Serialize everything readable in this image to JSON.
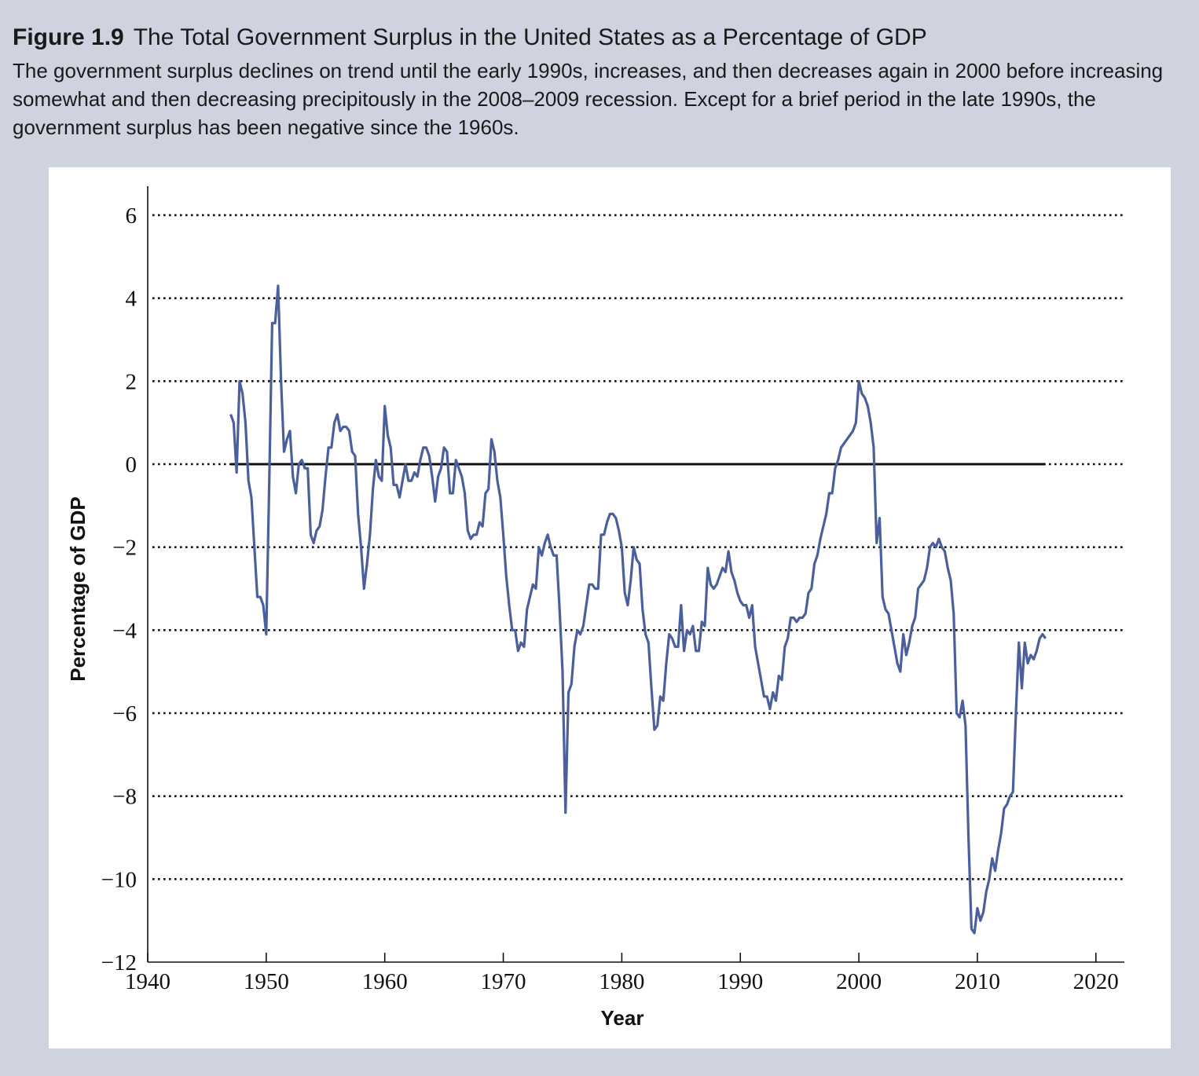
{
  "chart_data": {
    "type": "line",
    "figure_label": "Figure 1.9",
    "title": "The Total Government Surplus in the United States as a Percentage of GDP",
    "subtitle": "The government surplus declines on trend until the early 1990s, increases, and then decreases again in 2000 before increasing somewhat and then decreasing precipitously in the 2008–2009 recession. Except for a brief period in the late 1990s, the government surplus has been negative since the 1960s.",
    "x_label": "Year",
    "y_label": "Percentage of GDP",
    "color": "#4a5f9c",
    "grid": true,
    "xlim": [
      1940,
      2022.4
    ],
    "xticks": [
      1940,
      1950,
      1960,
      1970,
      1980,
      1990,
      2000,
      2010,
      2020
    ],
    "ylim": [
      -12,
      6.7
    ],
    "yticks": [
      {
        "value": -12,
        "label": "−12"
      },
      {
        "value": -10,
        "label": "−10"
      },
      {
        "value": -8,
        "label": "−8"
      },
      {
        "value": -6,
        "label": "−6"
      },
      {
        "value": -4,
        "label": "−4"
      },
      {
        "value": -2,
        "label": "−2"
      },
      0,
      2,
      4,
      6
    ],
    "x": [
      1947,
      1947.25,
      1947.5,
      1947.75,
      1948,
      1948.25,
      1948.5,
      1948.75,
      1949,
      1949.25,
      1949.5,
      1949.75,
      1950,
      1950.25,
      1950.5,
      1950.75,
      1951,
      1951.25,
      1951.5,
      1951.75,
      1952,
      1952.25,
      1952.5,
      1952.75,
      1953,
      1953.25,
      1953.5,
      1953.75,
      1954,
      1954.25,
      1954.5,
      1954.75,
      1955,
      1955.25,
      1955.5,
      1955.75,
      1956,
      1956.25,
      1956.5,
      1956.75,
      1957,
      1957.25,
      1957.5,
      1957.75,
      1958,
      1958.25,
      1958.5,
      1958.75,
      1959,
      1959.25,
      1959.5,
      1959.75,
      1960,
      1960.25,
      1960.5,
      1960.75,
      1961,
      1961.25,
      1961.5,
      1961.75,
      1962,
      1962.25,
      1962.5,
      1962.75,
      1963,
      1963.25,
      1963.5,
      1963.75,
      1964,
      1964.25,
      1964.5,
      1964.75,
      1965,
      1965.25,
      1965.5,
      1965.75,
      1966,
      1966.25,
      1966.5,
      1966.75,
      1967,
      1967.25,
      1967.5,
      1967.75,
      1968,
      1968.25,
      1968.5,
      1968.75,
      1969,
      1969.25,
      1969.5,
      1969.75,
      1970,
      1970.25,
      1970.5,
      1970.75,
      1971,
      1971.25,
      1971.5,
      1971.75,
      1972,
      1972.25,
      1972.5,
      1972.75,
      1973,
      1973.25,
      1973.5,
      1973.75,
      1974,
      1974.25,
      1974.5,
      1974.75,
      1975,
      1975.25,
      1975.5,
      1975.75,
      1976,
      1976.25,
      1976.5,
      1976.75,
      1977,
      1977.25,
      1977.5,
      1977.75,
      1978,
      1978.25,
      1978.5,
      1978.75,
      1979,
      1979.25,
      1979.5,
      1979.75,
      1980,
      1980.25,
      1980.5,
      1980.75,
      1981,
      1981.25,
      1981.5,
      1981.75,
      1982,
      1982.25,
      1982.5,
      1982.75,
      1983,
      1983.25,
      1983.5,
      1983.75,
      1984,
      1984.25,
      1984.5,
      1984.75,
      1985,
      1985.25,
      1985.5,
      1985.75,
      1986,
      1986.25,
      1986.5,
      1986.75,
      1987,
      1987.25,
      1987.5,
      1987.75,
      1988,
      1988.25,
      1988.5,
      1988.75,
      1989,
      1989.25,
      1989.5,
      1989.75,
      1990,
      1990.25,
      1990.5,
      1990.75,
      1991,
      1991.25,
      1991.5,
      1991.75,
      1992,
      1992.25,
      1992.5,
      1992.75,
      1993,
      1993.25,
      1993.5,
      1993.75,
      1994,
      1994.25,
      1994.5,
      1994.75,
      1995,
      1995.25,
      1995.5,
      1995.75,
      1996,
      1996.25,
      1996.5,
      1996.75,
      1997,
      1997.25,
      1997.5,
      1997.75,
      1998,
      1998.25,
      1998.5,
      1998.75,
      1999,
      1999.25,
      1999.5,
      1999.75,
      2000,
      2000.25,
      2000.5,
      2000.75,
      2001,
      2001.25,
      2001.5,
      2001.75,
      2002,
      2002.25,
      2002.5,
      2002.75,
      2003,
      2003.25,
      2003.5,
      2003.75,
      2004,
      2004.25,
      2004.5,
      2004.75,
      2005,
      2005.25,
      2005.5,
      2005.75,
      2006,
      2006.25,
      2006.5,
      2006.75,
      2007,
      2007.25,
      2007.5,
      2007.75,
      2008,
      2008.25,
      2008.5,
      2008.75,
      2009,
      2009.25,
      2009.5,
      2009.75,
      2010,
      2010.25,
      2010.5,
      2010.75,
      2011,
      2011.25,
      2011.5,
      2011.75,
      2012,
      2012.25,
      2012.5,
      2012.75,
      2013,
      2013.25,
      2013.5,
      2013.75,
      2014,
      2014.25,
      2014.5,
      2014.75,
      2015,
      2015.25,
      2015.5,
      2015.75
    ],
    "values": [
      1.2,
      1.0,
      -0.2,
      2.0,
      1.7,
      1.0,
      -0.4,
      -0.8,
      -2.0,
      -3.2,
      -3.2,
      -3.4,
      -4.1,
      -0.5,
      3.4,
      3.4,
      4.3,
      2.0,
      0.3,
      0.6,
      0.8,
      -0.3,
      -0.7,
      0.0,
      0.1,
      -0.1,
      -0.1,
      -1.7,
      -1.9,
      -1.6,
      -1.5,
      -1.1,
      -0.3,
      0.4,
      0.4,
      1.0,
      1.2,
      0.8,
      0.9,
      0.9,
      0.8,
      0.3,
      0.2,
      -1.2,
      -2.0,
      -3.0,
      -2.4,
      -1.7,
      -0.6,
      0.1,
      -0.3,
      -0.4,
      1.4,
      0.7,
      0.4,
      -0.5,
      -0.5,
      -0.8,
      -0.4,
      0.0,
      -0.4,
      -0.4,
      -0.2,
      -0.3,
      0.1,
      0.4,
      0.4,
      0.2,
      -0.3,
      -0.9,
      -0.3,
      -0.1,
      0.4,
      0.3,
      -0.7,
      -0.7,
      0.1,
      -0.1,
      -0.3,
      -0.7,
      -1.6,
      -1.8,
      -1.7,
      -1.7,
      -1.4,
      -1.5,
      -0.7,
      -0.6,
      0.6,
      0.3,
      -0.4,
      -0.8,
      -1.7,
      -2.7,
      -3.4,
      -4.0,
      -4.0,
      -4.5,
      -4.3,
      -4.4,
      -3.5,
      -3.2,
      -2.9,
      -3.0,
      -2.0,
      -2.2,
      -1.9,
      -1.7,
      -2.0,
      -2.2,
      -2.2,
      -3.5,
      -5.0,
      -8.4,
      -5.5,
      -5.3,
      -4.4,
      -4.0,
      -4.1,
      -3.9,
      -3.4,
      -2.9,
      -2.9,
      -3.0,
      -3.0,
      -1.7,
      -1.7,
      -1.4,
      -1.2,
      -1.2,
      -1.3,
      -1.6,
      -2.0,
      -3.1,
      -3.4,
      -2.8,
      -2.0,
      -2.3,
      -2.4,
      -3.5,
      -4.1,
      -4.3,
      -5.4,
      -6.4,
      -6.3,
      -5.6,
      -5.7,
      -4.8,
      -4.1,
      -4.2,
      -4.4,
      -4.4,
      -3.4,
      -4.5,
      -4.0,
      -4.1,
      -3.9,
      -4.5,
      -4.5,
      -3.8,
      -3.9,
      -2.5,
      -2.9,
      -3.0,
      -2.9,
      -2.7,
      -2.5,
      -2.6,
      -2.1,
      -2.6,
      -2.8,
      -3.1,
      -3.3,
      -3.4,
      -3.4,
      -3.7,
      -3.4,
      -4.4,
      -4.8,
      -5.2,
      -5.6,
      -5.6,
      -5.9,
      -5.5,
      -5.7,
      -5.1,
      -5.2,
      -4.4,
      -4.2,
      -3.7,
      -3.7,
      -3.8,
      -3.7,
      -3.7,
      -3.6,
      -3.1,
      -3.0,
      -2.4,
      -2.2,
      -1.8,
      -1.5,
      -1.2,
      -0.7,
      -0.7,
      -0.1,
      0.1,
      0.4,
      0.5,
      0.6,
      0.7,
      0.8,
      1.0,
      2.0,
      1.7,
      1.6,
      1.4,
      1.0,
      0.4,
      -1.9,
      -1.3,
      -3.2,
      -3.5,
      -3.6,
      -4.0,
      -4.4,
      -4.8,
      -5.0,
      -4.1,
      -4.6,
      -4.3,
      -3.9,
      -3.7,
      -3.0,
      -2.9,
      -2.8,
      -2.5,
      -2.0,
      -1.9,
      -2.0,
      -1.8,
      -2.0,
      -2.1,
      -2.5,
      -2.8,
      -3.6,
      -6.0,
      -6.1,
      -5.7,
      -6.3,
      -9.0,
      -11.2,
      -11.3,
      -10.7,
      -11.0,
      -10.8,
      -10.3,
      -10.0,
      -9.5,
      -9.8,
      -9.3,
      -8.9,
      -8.3,
      -8.2,
      -8.0,
      -7.9,
      -6.0,
      -4.3,
      -5.4,
      -4.3,
      -4.8,
      -4.6,
      -4.7,
      -4.5,
      -4.2,
      -4.1,
      -4.2
    ]
  }
}
